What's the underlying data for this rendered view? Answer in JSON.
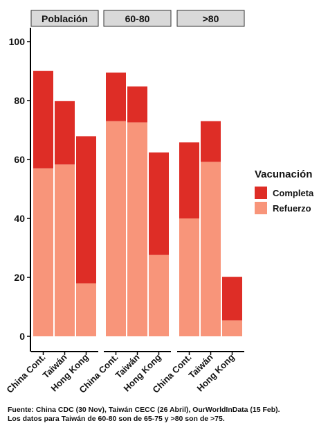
{
  "chart_data": {
    "type": "bar",
    "stacked": true,
    "facets": [
      "Población",
      "60-80",
      ">80"
    ],
    "categories": [
      "China Cont.",
      "Taiwán",
      "Hong Kong"
    ],
    "series": [
      {
        "name": "Refuerzo",
        "color": "#f8957a",
        "values": [
          [
            57,
            58.3,
            18
          ],
          [
            73,
            72.6,
            27.6
          ],
          [
            40,
            59.2,
            5.4
          ]
        ]
      },
      {
        "name": "Completa",
        "color": "#de2d26",
        "values": [
          [
            33.1,
            21.5,
            49.9
          ],
          [
            16.5,
            12.2,
            34.8
          ],
          [
            25.8,
            13.8,
            14.8
          ]
        ]
      }
    ],
    "totals": [
      [
        90.1,
        79.8,
        67.9
      ],
      [
        89.5,
        84.8,
        62.4
      ],
      [
        65.8,
        73.0,
        20.2
      ]
    ],
    "ylim": [
      0,
      100
    ],
    "yticks": [
      0,
      20,
      40,
      60,
      80,
      100
    ],
    "grid": false,
    "legend_position": "right"
  },
  "legend": {
    "title": "Vacunación",
    "items": [
      {
        "label": "Completa",
        "color": "#de2d26"
      },
      {
        "label": "Refuerzo",
        "color": "#f8957a"
      }
    ]
  },
  "caption": {
    "line1": "Fuente: China CDC (30 Nov), Taiwán CECC (26 Abril), OurWorldInData (15 Feb).",
    "line2": "Los datos para Taiwán de 60-80 son de 65-75 y >80 son de >75."
  }
}
